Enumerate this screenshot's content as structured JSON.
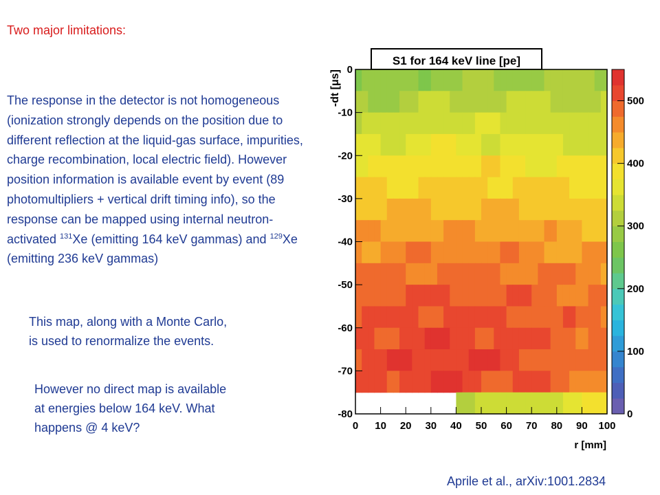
{
  "slide": {
    "heading": "Two major limitations:",
    "para_part1": "The response in the detector is not homogeneous (ionization strongly depends on the position due to different reflection at the liquid-gas surface, impurities, charge recombination, local electric field). However position information is available event by event (89 photomultipliers + vertical drift timing info), so the response can be mapped using internal neutron-activated ",
    "isotope1_mass": "131",
    "isotope1_symbol": "Xe",
    "para_part2": " (emitting 164 keV gammas) and ",
    "isotope2_mass": "129",
    "isotope2_symbol": "Xe",
    "para_part3": " (emitting 236 keV gammas)",
    "note1": "This map, along with a Monte Carlo, is used to renormalize the events.",
    "note2": "However no direct map is available at energies below 164 keV. What happens @ 4 keV?",
    "citation": "Aprile et al., arXiv:1001.2834"
  },
  "chart_data": {
    "type": "heatmap",
    "title": "S1 for 164 keV line [pe]",
    "xlabel": "r [mm]",
    "ylabel": "-dt [μs]",
    "xlim": [
      0,
      100
    ],
    "ylim": [
      -80,
      0
    ],
    "zlim": [
      0,
      550
    ],
    "x_ticks": [
      "0",
      "10",
      "20",
      "30",
      "40",
      "50",
      "60",
      "70",
      "80",
      "90",
      "100"
    ],
    "y_ticks": [
      "0",
      "-10",
      "-20",
      "-30",
      "-40",
      "-50",
      "-60",
      "-70",
      "-80"
    ],
    "z_ticks": [
      "0",
      "100",
      "200",
      "300",
      "400",
      "500"
    ],
    "y_rows_dt": [
      -2.5,
      -7.5,
      -12.5,
      -17.5,
      -22.5,
      -27.5,
      -32.5,
      -37.5,
      -42.5,
      -47.5,
      -52.5,
      -57.5,
      -62.5,
      -67.5,
      -72.5,
      -77.5
    ],
    "row_values": [
      [
        270,
        280,
        285,
        290,
        292,
        295,
        298,
        300,
        300,
        302
      ],
      [
        305,
        310,
        315,
        318,
        320,
        322,
        325,
        325,
        322,
        320
      ],
      [
        330,
        335,
        338,
        340,
        340,
        342,
        340,
        338,
        335,
        330
      ],
      [
        355,
        360,
        362,
        365,
        365,
        362,
        360,
        358,
        355,
        350
      ],
      [
        380,
        385,
        388,
        390,
        390,
        388,
        385,
        382,
        378,
        372
      ],
      [
        405,
        408,
        410,
        410,
        410,
        408,
        405,
        402,
        398,
        392
      ],
      [
        420,
        422,
        425,
        425,
        425,
        422,
        420,
        418,
        414,
        408
      ],
      [
        440,
        442,
        444,
        445,
        445,
        442,
        440,
        438,
        434,
        428
      ],
      [
        460,
        462,
        465,
        468,
        468,
        465,
        462,
        458,
        452,
        448
      ],
      [
        475,
        480,
        482,
        485,
        485,
        482,
        478,
        474,
        468,
        462
      ],
      [
        490,
        495,
        498,
        500,
        498,
        495,
        490,
        486,
        480,
        474
      ],
      [
        500,
        505,
        508,
        510,
        508,
        505,
        500,
        494,
        488,
        480
      ],
      [
        505,
        512,
        515,
        518,
        515,
        510,
        505,
        498,
        490,
        482
      ],
      [
        508,
        515,
        520,
        522,
        520,
        515,
        505,
        495,
        488,
        480
      ],
      [
        505,
        512,
        518,
        520,
        515,
        510,
        500,
        490,
        482,
        475
      ],
      [
        null,
        null,
        null,
        null,
        320,
        330,
        340,
        350,
        360,
        370
      ]
    ],
    "colorscale": [
      "#6a5fb0",
      "#4e5fb7",
      "#3f6fc4",
      "#3585cf",
      "#2f9cd8",
      "#2ab4de",
      "#36c3d6",
      "#4bc9b8",
      "#5ec98e",
      "#6cc564",
      "#7ec64b",
      "#98ca45",
      "#b3cf3e",
      "#cddc36",
      "#e5e432",
      "#f3e02e",
      "#f6c82c",
      "#f6ab2c",
      "#f48b2b",
      "#ef6a2d",
      "#e8472f",
      "#e0332f"
    ]
  }
}
